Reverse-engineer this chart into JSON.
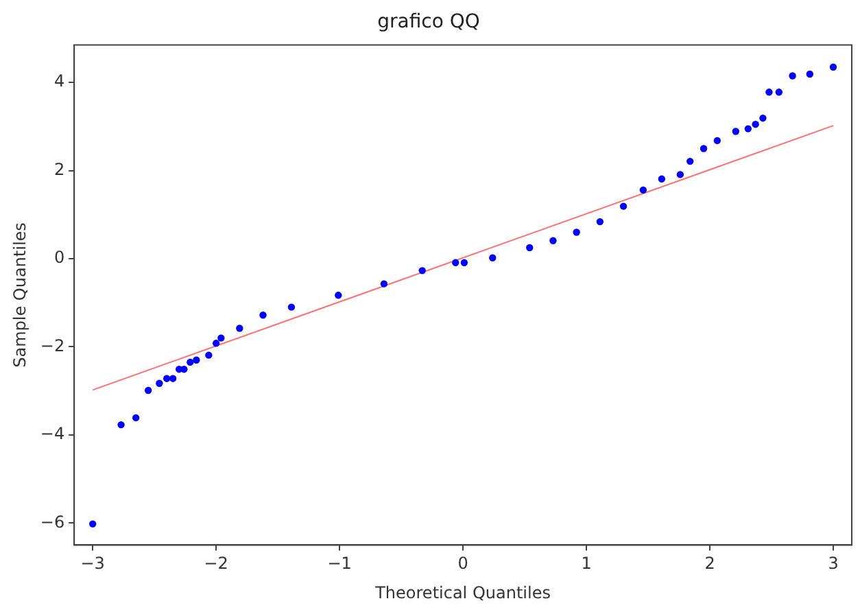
{
  "chart_data": {
    "type": "scatter",
    "title": "grafico QQ",
    "xlabel": "Theoretical Quantiles",
    "ylabel": "Sample Quantiles",
    "xlim": [
      -3.15,
      3.15
    ],
    "ylim": [
      -6.5,
      4.85
    ],
    "xticks": [
      {
        "value": -3,
        "label": "−3"
      },
      {
        "value": -2,
        "label": "−2"
      },
      {
        "value": -1,
        "label": "−1"
      },
      0,
      1,
      2,
      3
    ],
    "yticks": [
      {
        "value": -6,
        "label": "−6"
      },
      {
        "value": -4,
        "label": "−4"
      },
      {
        "value": -2,
        "label": "−2"
      },
      0,
      2,
      4
    ],
    "grid": false,
    "legend": false,
    "series": [
      {
        "marker": "circle",
        "color": "#0000ff",
        "x": [
          -3.0,
          -2.77,
          -2.65,
          -2.55,
          -2.46,
          -2.4,
          -2.35,
          -2.3,
          -2.26,
          -2.21,
          -2.16,
          -2.06,
          -2.0,
          -1.96,
          -1.81,
          -1.62,
          -1.39,
          -1.01,
          -0.64,
          -0.33,
          -0.06,
          0.01,
          0.24,
          0.54,
          0.73,
          0.92,
          1.11,
          1.3,
          1.46,
          1.61,
          1.76,
          1.84,
          1.95,
          2.06,
          2.21,
          2.31,
          2.37,
          2.43,
          2.48,
          2.56,
          2.67,
          2.81,
          3.0
        ],
        "values": [
          -6.02,
          -3.77,
          -3.61,
          -2.99,
          -2.83,
          -2.72,
          -2.72,
          -2.51,
          -2.51,
          -2.35,
          -2.3,
          -2.19,
          -1.92,
          -1.8,
          -1.58,
          -1.28,
          -1.1,
          -0.83,
          -0.57,
          -0.27,
          -0.09,
          -0.09,
          0.02,
          0.25,
          0.41,
          0.6,
          0.84,
          1.19,
          1.56,
          1.81,
          1.91,
          2.21,
          2.5,
          2.68,
          2.89,
          2.95,
          3.05,
          3.19,
          3.78,
          3.78,
          4.15,
          4.19,
          4.35
        ]
      },
      {
        "type": "line",
        "marker": "none",
        "color": "#ff7070",
        "x": [
          -3.0,
          3.0
        ],
        "values": [
          -2.98,
          3.02
        ]
      }
    ]
  }
}
